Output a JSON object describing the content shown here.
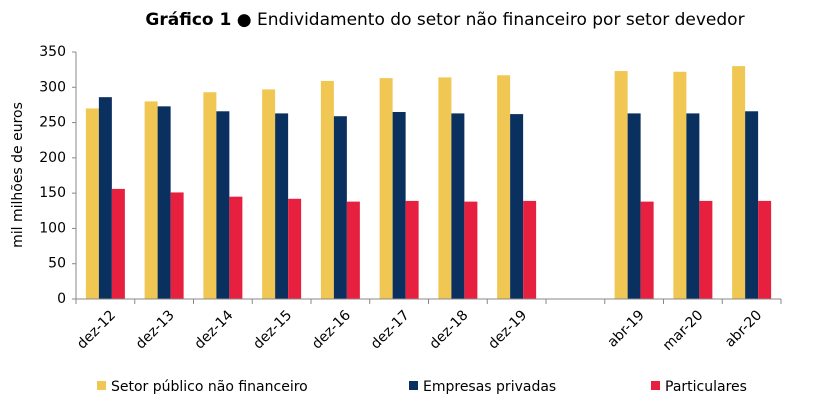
{
  "chart_data": {
    "type": "bar",
    "title": [
      "Gráfico 1",
      "● Endividamento do setor não financeiro por setor devedor"
    ],
    "y_label": "mil milhões de euros",
    "categories": [
      "dez-12",
      "dez-13",
      "dez-14",
      "dez-15",
      "dez-16",
      "dez-17",
      "dez-18",
      "dez-19",
      null,
      "abr-19",
      "mar-20",
      "abr-20"
    ],
    "series": [
      {
        "name": "Setor público não financeiro",
        "color": "#f0c752",
        "values": [
          270,
          280,
          293,
          297,
          309,
          313,
          314,
          317,
          null,
          323,
          322,
          330
        ]
      },
      {
        "name": "Empresas privadas",
        "color": "#0a3060",
        "values": [
          286,
          273,
          266,
          263,
          259,
          265,
          263,
          262,
          null,
          263,
          263,
          266
        ]
      },
      {
        "name": "Particulares",
        "color": "#e8203f",
        "values": [
          156,
          151,
          145,
          142,
          138,
          139,
          138,
          139,
          null,
          138,
          139,
          139
        ]
      }
    ],
    "ylim": [
      0,
      350
    ],
    "yticks": [
      0,
      50,
      100,
      150,
      200,
      250,
      300,
      350
    ],
    "grid": false
  }
}
